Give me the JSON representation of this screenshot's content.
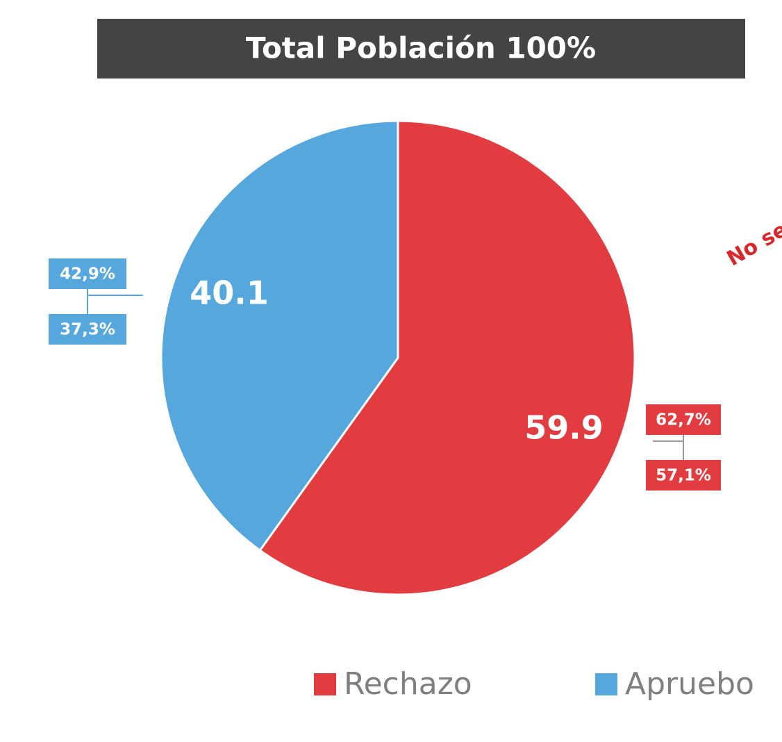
{
  "chart_data": {
    "type": "pie",
    "title": "Total Población 100%",
    "categories": [
      "Rechazo",
      "Apruebo"
    ],
    "values": [
      59.9,
      40.1
    ],
    "colors": [
      "#e23b40",
      "#55a7dd"
    ],
    "ranges": [
      [
        {
          "value": 62.7,
          "label": "62,7%"
        },
        {
          "value": 57.1,
          "label": "57,1%"
        }
      ],
      [
        {
          "value": 42.9,
          "label": "42,9%"
        },
        {
          "value": 37.3,
          "label": "37,3%"
        }
      ]
    ],
    "annotation": "No se"
  }
}
